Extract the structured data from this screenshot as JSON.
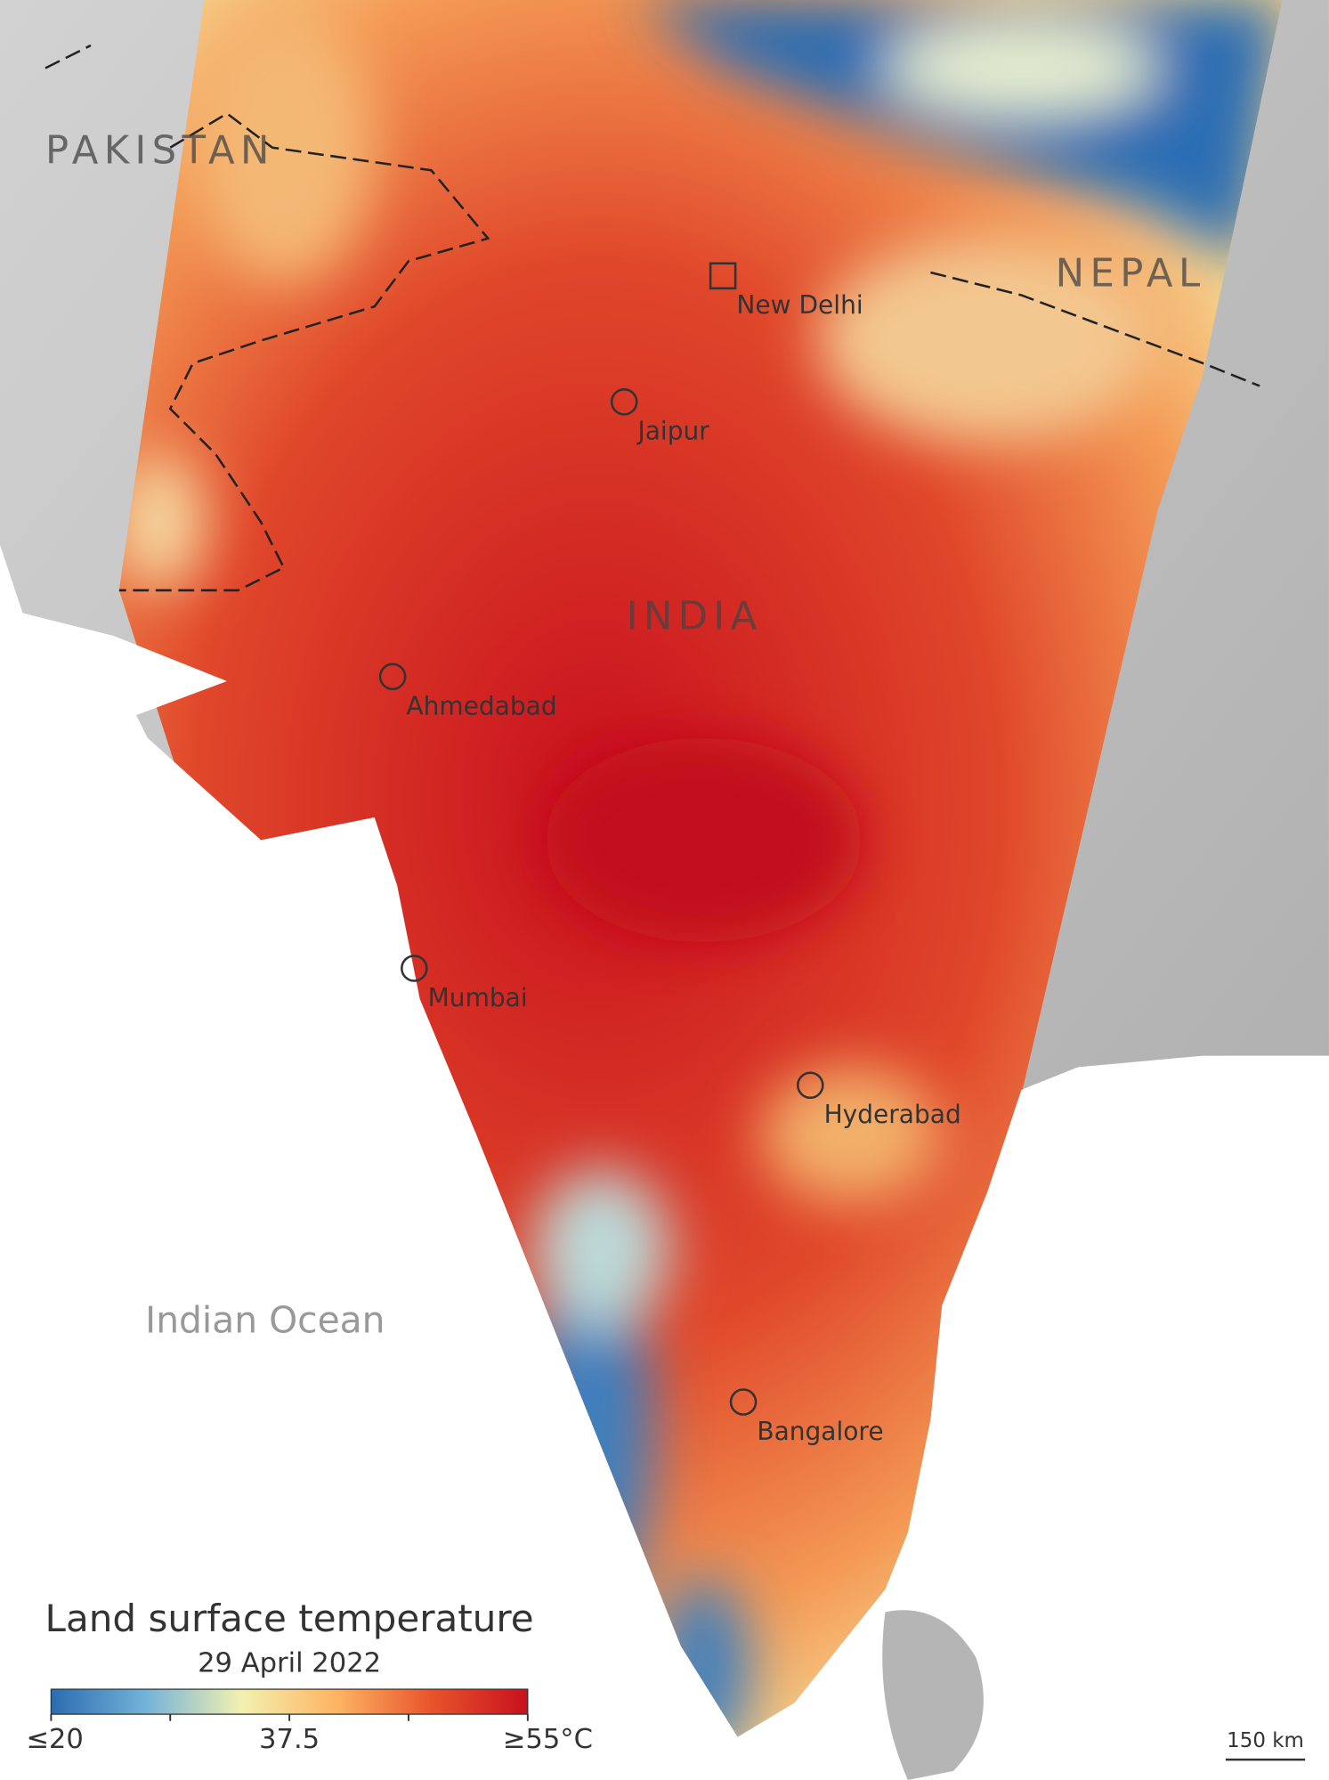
{
  "map": {
    "countries": [
      "PAKISTAN",
      "NEPAL",
      "INDIA"
    ],
    "cities": [
      {
        "name": "New Delhi",
        "marker": "square"
      },
      {
        "name": "Jaipur",
        "marker": "circle"
      },
      {
        "name": "Ahmedabad",
        "marker": "circle"
      },
      {
        "name": "Mumbai",
        "marker": "circle"
      },
      {
        "name": "Hyderabad",
        "marker": "circle"
      },
      {
        "name": "Bangalore",
        "marker": "circle"
      }
    ],
    "ocean": "Indian Ocean"
  },
  "legend": {
    "title": "Land surface temperature",
    "date": "29 April 2022",
    "range": [
      20,
      55
    ],
    "ticks": [
      {
        "value": 20,
        "label": "≤20"
      },
      37.5,
      {
        "value": 55,
        "label": "≥55°C"
      }
    ],
    "colors": [
      "#2b6cb0",
      "#74b3d8",
      "#f3f1b0",
      "#fdb462",
      "#e8532c",
      "#c8101e"
    ]
  },
  "scale_bar": "150 km"
}
